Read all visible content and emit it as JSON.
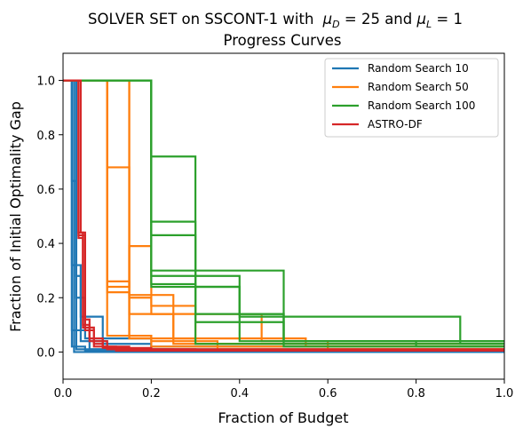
{
  "chart_data": {
    "type": "line",
    "title_main": "SOLVER SET on SSCONT-1 with",
    "title_mu_d": "μ",
    "title_mu_d_sub": "D",
    "title_mu_d_val": " = 25 and ",
    "title_mu_l": "μ",
    "title_mu_l_sub": "L",
    "title_mu_l_val": " = 1",
    "subtitle": "Progress Curves",
    "xlabel": "Fraction of Budget",
    "ylabel": "Fraction of Initial Optimality Gap",
    "xlim": [
      0,
      1.0
    ],
    "ylim": [
      -0.1,
      1.1
    ],
    "xticks": [
      {
        "value": 0.0,
        "label": "0.0"
      },
      {
        "value": 0.2,
        "label": "0.2"
      },
      {
        "value": 0.4,
        "label": "0.4"
      },
      {
        "value": 0.6,
        "label": "0.6"
      },
      {
        "value": 0.8,
        "label": "0.8"
      },
      {
        "value": 1.0,
        "label": "1.0"
      }
    ],
    "yticks": [
      {
        "value": 0.0,
        "label": "0.0"
      },
      {
        "value": 0.2,
        "label": "0.2"
      },
      {
        "value": 0.4,
        "label": "0.4"
      },
      {
        "value": 0.6,
        "label": "0.6"
      },
      {
        "value": 0.8,
        "label": "0.8"
      },
      {
        "value": 1.0,
        "label": "1.0"
      }
    ],
    "grid": false,
    "legend_position": "top-right",
    "series": [
      {
        "name": "Random Search 10",
        "color": "#1f77b4",
        "curves": [
          [
            [
              0,
              1
            ],
            [
              0.02,
              1
            ],
            [
              0.02,
              0.63
            ],
            [
              0.03,
              0.63
            ],
            [
              0.03,
              0.01
            ],
            [
              1.0,
              0.01
            ]
          ],
          [
            [
              0,
              1
            ],
            [
              0.02,
              1
            ],
            [
              0.02,
              0.32
            ],
            [
              0.04,
              0.32
            ],
            [
              0.04,
              0.04
            ],
            [
              0.1,
              0.04
            ],
            [
              0.1,
              0.005
            ],
            [
              1.0,
              0.005
            ]
          ],
          [
            [
              0,
              1
            ],
            [
              0.02,
              1
            ],
            [
              0.02,
              0.02
            ],
            [
              0.05,
              0.02
            ],
            [
              0.05,
              0.005
            ],
            [
              1.0,
              0.005
            ]
          ],
          [
            [
              0,
              1
            ],
            [
              0.03,
              1
            ],
            [
              0.03,
              0.28
            ],
            [
              0.04,
              0.28
            ],
            [
              0.04,
              0.13
            ],
            [
              0.09,
              0.13
            ],
            [
              0.09,
              0.03
            ],
            [
              0.2,
              0.03
            ],
            [
              0.2,
              0.005
            ],
            [
              1.0,
              0.005
            ]
          ],
          [
            [
              0,
              1
            ],
            [
              0.03,
              1
            ],
            [
              0.03,
              0.2
            ],
            [
              0.05,
              0.2
            ],
            [
              0.05,
              0.05
            ],
            [
              0.2,
              0.05
            ],
            [
              0.2,
              0.02
            ],
            [
              1.0,
              0.02
            ]
          ],
          [
            [
              0,
              1
            ],
            [
              0.02,
              1
            ],
            [
              0.02,
              0.08
            ],
            [
              0.06,
              0.08
            ],
            [
              0.06,
              0.01
            ],
            [
              0.25,
              0.01
            ],
            [
              0.25,
              0.005
            ],
            [
              1.0,
              0.005
            ]
          ],
          [
            [
              0,
              1
            ],
            [
              0.025,
              1
            ],
            [
              0.025,
              0.0
            ],
            [
              1.0,
              0.0
            ]
          ]
        ]
      },
      {
        "name": "Random Search 50",
        "color": "#ff7f0e",
        "curves": [
          [
            [
              0,
              1
            ],
            [
              0.1,
              1
            ],
            [
              0.1,
              0.68
            ],
            [
              0.15,
              0.68
            ],
            [
              0.15,
              0.06
            ],
            [
              0.2,
              0.06
            ],
            [
              0.2,
              0.02
            ],
            [
              1.0,
              0.02
            ]
          ],
          [
            [
              0,
              1
            ],
            [
              0.1,
              1
            ],
            [
              0.1,
              0.26
            ],
            [
              0.15,
              0.26
            ],
            [
              0.15,
              0.21
            ],
            [
              0.25,
              0.21
            ],
            [
              0.25,
              0.03
            ],
            [
              1.0,
              0.03
            ]
          ],
          [
            [
              0,
              1
            ],
            [
              0.1,
              1
            ],
            [
              0.1,
              0.24
            ],
            [
              0.15,
              0.24
            ],
            [
              0.15,
              0.39
            ],
            [
              0.2,
              0.39
            ],
            [
              0.2,
              0.17
            ],
            [
              0.3,
              0.17
            ],
            [
              0.3,
              0.03
            ],
            [
              1.0,
              0.03
            ]
          ],
          [
            [
              0,
              1
            ],
            [
              0.15,
              1
            ],
            [
              0.15,
              0.2
            ],
            [
              0.2,
              0.2
            ],
            [
              0.2,
              0.14
            ],
            [
              0.45,
              0.14
            ],
            [
              0.45,
              0.04
            ],
            [
              0.6,
              0.04
            ],
            [
              0.6,
              0.01
            ],
            [
              1.0,
              0.01
            ]
          ],
          [
            [
              0,
              1
            ],
            [
              0.1,
              1
            ],
            [
              0.1,
              0.22
            ],
            [
              0.15,
              0.22
            ],
            [
              0.15,
              0.14
            ],
            [
              0.25,
              0.14
            ],
            [
              0.25,
              0.05
            ],
            [
              0.55,
              0.05
            ],
            [
              0.55,
              0.02
            ],
            [
              1.0,
              0.02
            ]
          ],
          [
            [
              0,
              1
            ],
            [
              0.1,
              1
            ],
            [
              0.1,
              0.06
            ],
            [
              0.2,
              0.06
            ],
            [
              0.2,
              0.04
            ],
            [
              0.35,
              0.04
            ],
            [
              0.35,
              0.01
            ],
            [
              1.0,
              0.01
            ]
          ],
          [
            [
              0,
              1
            ],
            [
              0.15,
              1
            ],
            [
              0.15,
              0.05
            ],
            [
              0.3,
              0.05
            ],
            [
              0.3,
              0.03
            ],
            [
              1.0,
              0.03
            ]
          ]
        ]
      },
      {
        "name": "Random Search 100",
        "color": "#2ca02c",
        "curves": [
          [
            [
              0,
              1
            ],
            [
              0.2,
              1
            ],
            [
              0.2,
              0.72
            ],
            [
              0.3,
              0.72
            ],
            [
              0.3,
              0.03
            ],
            [
              1.0,
              0.03
            ]
          ],
          [
            [
              0,
              1
            ],
            [
              0.2,
              1
            ],
            [
              0.2,
              0.48
            ],
            [
              0.3,
              0.48
            ],
            [
              0.3,
              0.24
            ],
            [
              0.4,
              0.24
            ],
            [
              0.4,
              0.04
            ],
            [
              1.0,
              0.04
            ]
          ],
          [
            [
              0,
              1
            ],
            [
              0.2,
              1
            ],
            [
              0.2,
              0.43
            ],
            [
              0.3,
              0.43
            ],
            [
              0.3,
              0.14
            ],
            [
              0.5,
              0.14
            ],
            [
              0.5,
              0.04
            ],
            [
              1.0,
              0.04
            ]
          ],
          [
            [
              0,
              1
            ],
            [
              0.2,
              1
            ],
            [
              0.2,
              0.3
            ],
            [
              0.5,
              0.3
            ],
            [
              0.5,
              0.04
            ],
            [
              0.8,
              0.04
            ],
            [
              0.8,
              0.02
            ],
            [
              1.0,
              0.02
            ]
          ],
          [
            [
              0,
              1
            ],
            [
              0.2,
              1
            ],
            [
              0.2,
              0.28
            ],
            [
              0.4,
              0.28
            ],
            [
              0.4,
              0.13
            ],
            [
              0.9,
              0.13
            ],
            [
              0.9,
              0.03
            ],
            [
              1.0,
              0.03
            ]
          ],
          [
            [
              0,
              1
            ],
            [
              0.2,
              1
            ],
            [
              0.2,
              0.25
            ],
            [
              0.3,
              0.25
            ],
            [
              0.3,
              0.11
            ],
            [
              0.5,
              0.11
            ],
            [
              0.5,
              0.02
            ],
            [
              1.0,
              0.02
            ]
          ],
          [
            [
              0,
              1
            ],
            [
              0.2,
              1
            ],
            [
              0.2,
              0.24
            ],
            [
              0.4,
              0.24
            ],
            [
              0.4,
              0.14
            ],
            [
              0.5,
              0.14
            ],
            [
              0.5,
              0.04
            ],
            [
              1.0,
              0.04
            ]
          ]
        ]
      },
      {
        "name": "ASTRO-DF",
        "color": "#d62728",
        "curves": [
          [
            [
              0,
              1
            ],
            [
              0.035,
              1
            ],
            [
              0.035,
              0.44
            ],
            [
              0.045,
              0.44
            ],
            [
              0.045,
              0.1
            ],
            [
              0.06,
              0.1
            ],
            [
              0.06,
              0.05
            ],
            [
              0.09,
              0.05
            ],
            [
              0.09,
              0.02
            ],
            [
              0.15,
              0.02
            ],
            [
              0.15,
              0.01
            ],
            [
              0.3,
              0.01
            ],
            [
              0.3,
              0.005
            ],
            [
              1.0,
              0.005
            ]
          ],
          [
            [
              0,
              1
            ],
            [
              0.035,
              1
            ],
            [
              0.035,
              0.43
            ],
            [
              0.05,
              0.43
            ],
            [
              0.05,
              0.08
            ],
            [
              0.07,
              0.08
            ],
            [
              0.07,
              0.03
            ],
            [
              0.09,
              0.03
            ],
            [
              0.09,
              0.015
            ],
            [
              0.2,
              0.015
            ],
            [
              0.2,
              0.005
            ],
            [
              1.0,
              0.005
            ]
          ],
          [
            [
              0,
              1
            ],
            [
              0.04,
              1
            ],
            [
              0.04,
              0.44
            ],
            [
              0.05,
              0.44
            ],
            [
              0.05,
              0.12
            ],
            [
              0.06,
              0.12
            ],
            [
              0.06,
              0.04
            ],
            [
              0.1,
              0.04
            ],
            [
              0.1,
              0.01
            ],
            [
              1.0,
              0.01
            ]
          ],
          [
            [
              0,
              1
            ],
            [
              0.035,
              1
            ],
            [
              0.035,
              0.42
            ],
            [
              0.045,
              0.42
            ],
            [
              0.045,
              0.09
            ],
            [
              0.07,
              0.09
            ],
            [
              0.07,
              0.02
            ],
            [
              0.12,
              0.02
            ],
            [
              0.12,
              0.005
            ],
            [
              1.0,
              0.005
            ]
          ]
        ]
      }
    ]
  }
}
